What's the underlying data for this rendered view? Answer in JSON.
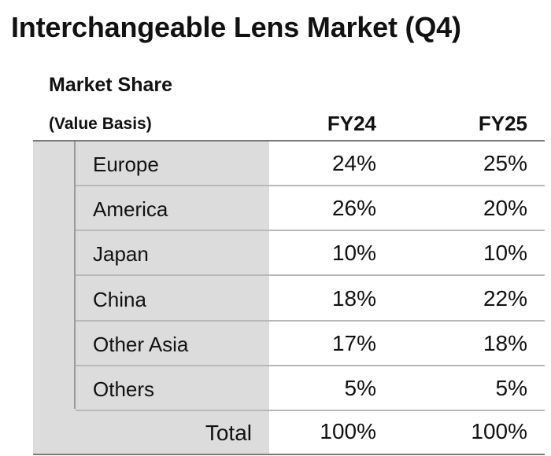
{
  "chart_data": {
    "type": "table",
    "title": "Interchangeable Lens Market (Q4)",
    "subtitle": "Market Share",
    "basis_label": "(Value Basis)",
    "columns": [
      "FY24",
      "FY25"
    ],
    "rows": [
      {
        "label": "Europe",
        "values": [
          "24%",
          "25%"
        ]
      },
      {
        "label": "America",
        "values": [
          "26%",
          "20%"
        ]
      },
      {
        "label": "Japan",
        "values": [
          "10%",
          "10%"
        ]
      },
      {
        "label": "China",
        "values": [
          "18%",
          "22%"
        ]
      },
      {
        "label": "Other Asia",
        "values": [
          "17%",
          "18%"
        ]
      },
      {
        "label": "Others",
        "values": [
          "5%",
          "5%"
        ]
      }
    ],
    "total": {
      "label": "Total",
      "values": [
        "100%",
        "100%"
      ]
    }
  },
  "colors": {
    "label_panel": "#dcdcdc",
    "rule": "#7a7a7a",
    "separator": "#b8b8b8"
  }
}
